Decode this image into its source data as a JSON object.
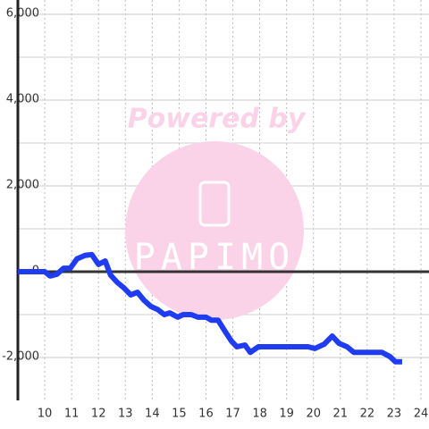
{
  "chart_data": {
    "type": "line",
    "watermark": {
      "top": "Powered by",
      "logo": "PAPIMO"
    },
    "x": [
      9.0,
      10.0,
      10.2,
      10.45,
      10.7,
      10.95,
      11.2,
      11.5,
      11.75,
      12.0,
      12.25,
      12.45,
      12.7,
      12.95,
      13.2,
      13.45,
      13.7,
      13.95,
      14.2,
      14.45,
      14.65,
      14.95,
      15.15,
      15.45,
      15.7,
      16.0,
      16.2,
      16.45,
      16.7,
      16.95,
      17.15,
      17.45,
      17.65,
      17.95,
      18.3,
      19.8,
      20.05,
      20.4,
      20.7,
      20.95,
      21.25,
      21.5,
      22.55,
      22.85,
      23.05,
      23.3
    ],
    "series": [
      {
        "color": "#1f3cf2",
        "values": [
          0,
          0,
          -100,
          -60,
          80,
          80,
          300,
          380,
          400,
          170,
          250,
          -80,
          -250,
          -380,
          -540,
          -480,
          -670,
          -810,
          -880,
          -1000,
          -960,
          -1060,
          -1000,
          -1000,
          -1060,
          -1060,
          -1130,
          -1130,
          -1380,
          -1620,
          -1750,
          -1710,
          -1880,
          -1750,
          -1750,
          -1750,
          -1790,
          -1690,
          -1500,
          -1670,
          -1750,
          -1880,
          -1880,
          -1980,
          -2100,
          -2100
        ]
      }
    ],
    "xlim": [
      9.0,
      24.3
    ],
    "xticks": [
      10,
      11,
      12,
      13,
      14,
      15,
      16,
      17,
      18,
      19,
      20,
      21,
      22,
      23,
      24
    ],
    "ylim": [
      -3000,
      6000
    ],
    "yticks": [
      {
        "value": -2000,
        "label": "-2,000"
      },
      0,
      {
        "value": 2000,
        "label": "2,000"
      },
      {
        "value": 4000,
        "label": "4,000"
      },
      {
        "value": 6000,
        "label": "6,000"
      }
    ],
    "grid": true
  }
}
